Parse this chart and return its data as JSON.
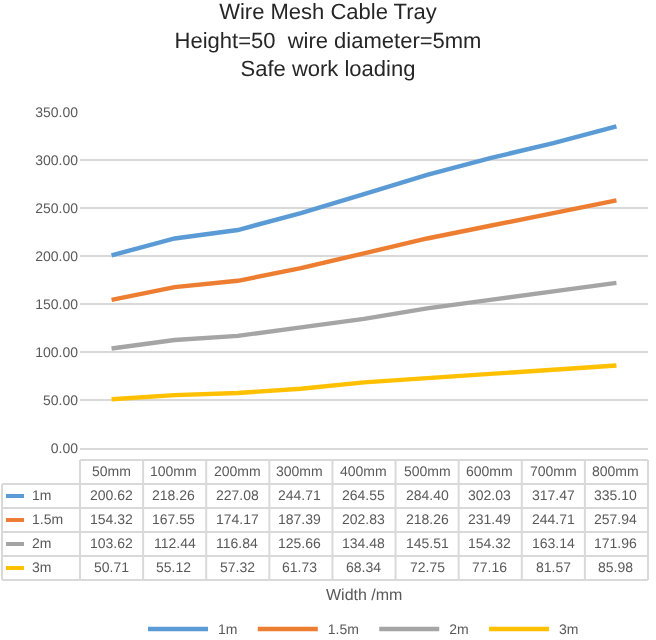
{
  "chart_data": {
    "type": "line",
    "title": "Wire Mesh Cable Tray\nHeight=50  wire diameter=5mm\nSafe work loading",
    "annotations": [
      "Width /mm"
    ],
    "categories": [
      "50mm",
      "100mm",
      "200mm",
      "300mm",
      "400mm",
      "500mm",
      "600mm",
      "700mm",
      "800mm"
    ],
    "series": [
      {
        "name": "1m",
        "color": "#5b9bd5",
        "values": [
          200.62,
          218.26,
          227.08,
          244.71,
          264.55,
          284.4,
          302.03,
          317.47,
          335.1
        ],
        "value_labels": [
          "200.62",
          "218.26",
          "227.08",
          "244.71",
          "264.55",
          "284.40",
          "302.03",
          "317.47",
          "335.10"
        ]
      },
      {
        "name": "1.5m",
        "color": "#ed7d31",
        "values": [
          154.32,
          167.55,
          174.17,
          187.39,
          202.83,
          218.26,
          231.49,
          244.71,
          257.94
        ],
        "value_labels": [
          "154.32",
          "167.55",
          "174.17",
          "187.39",
          "202.83",
          "218.26",
          "231.49",
          "244.71",
          "257.94"
        ]
      },
      {
        "name": "2m",
        "color": "#a5a5a5",
        "values": [
          103.62,
          112.44,
          116.84,
          125.66,
          134.48,
          145.51,
          154.32,
          163.14,
          171.96
        ],
        "value_labels": [
          "103.62",
          "112.44",
          "116.84",
          "125.66",
          "134.48",
          "145.51",
          "154.32",
          "163.14",
          "171.96"
        ]
      },
      {
        "name": "3m",
        "color": "#ffc000",
        "values": [
          50.71,
          55.12,
          57.32,
          61.73,
          68.34,
          72.75,
          77.16,
          81.57,
          85.98
        ],
        "value_labels": [
          "50.71",
          "55.12",
          "57.32",
          "61.73",
          "68.34",
          "72.75",
          "77.16",
          "81.57",
          "85.98"
        ]
      }
    ],
    "ylim": [
      0,
      350
    ],
    "yticks": [
      {
        "value": 0,
        "label": "0.00"
      },
      {
        "value": 50,
        "label": "50.00"
      },
      {
        "value": 100,
        "label": "100.00"
      },
      {
        "value": 150,
        "label": "150.00"
      },
      {
        "value": 200,
        "label": "200.00"
      },
      {
        "value": 250,
        "label": "250.00"
      },
      {
        "value": 300,
        "label": "300.00"
      },
      {
        "value": 350,
        "label": "350.00"
      }
    ],
    "grid": "y",
    "legend": "bottom",
    "marker": "none",
    "line_style": "solid"
  }
}
